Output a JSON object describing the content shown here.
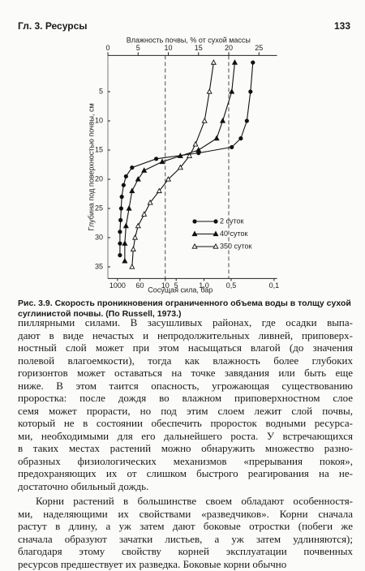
{
  "header": {
    "chapter": "Гл. 3. Ресурсы",
    "page": "133"
  },
  "chart_data": {
    "type": "line",
    "x_label_top": "Влажность почвы, % от сухой массы",
    "x_label_bottom": "Сосущая сила, бар",
    "y_label": "Глубина под поверхностью почвы, см",
    "xlim": [
      0,
      28
    ],
    "xticks": [
      0,
      5,
      10,
      15,
      20,
      25
    ],
    "x2ticks": [
      {
        "value": 1.6,
        "label": "1000"
      },
      {
        "value": 5.3,
        "label": "60"
      },
      {
        "value": 9.5,
        "label": "10"
      },
      {
        "value": 11.3,
        "label": "5"
      },
      {
        "value": 15.9,
        "label": "1,0"
      },
      {
        "value": 20.4,
        "label": "0,5"
      },
      {
        "value": 27.5,
        "label": "0,1"
      }
    ],
    "ylim": [
      -1.2,
      37
    ],
    "y_inverted": true,
    "yticks": [
      5,
      10,
      15,
      20,
      25,
      30,
      35
    ],
    "ref_lines": [
      9.5,
      20
    ],
    "series": [
      {
        "name": "2 суток",
        "color": "#111111",
        "marker": "circle",
        "depths": [
          0,
          5,
          10,
          13,
          14.5,
          15.5,
          16.5,
          18,
          19.5,
          21,
          23,
          25,
          27,
          29,
          31,
          33
        ],
        "values": [
          24,
          23.6,
          23,
          22,
          20.5,
          15,
          8,
          4,
          3,
          2.6,
          2.3,
          2.2,
          2.1,
          2,
          2,
          2
        ]
      },
      {
        "name": "40 суток",
        "color": "#111111",
        "marker": "triangle",
        "depths": [
          0,
          5,
          10,
          13,
          15,
          16,
          17,
          18.5,
          20,
          22,
          25,
          28,
          31,
          34
        ],
        "values": [
          21,
          20.5,
          19,
          18,
          15,
          12,
          9,
          6,
          5,
          4,
          3.5,
          3,
          2.8,
          2.8
        ]
      },
      {
        "name": "350 суток",
        "color": "#111111",
        "marker": "triangle-open",
        "depths": [
          0,
          5,
          10,
          14,
          16,
          18,
          20,
          22,
          24,
          26,
          28,
          30,
          32,
          35
        ],
        "values": [
          17.5,
          16.8,
          16,
          14.5,
          13.5,
          12,
          10,
          8.5,
          7,
          6,
          5,
          4.5,
          4.2,
          4
        ]
      }
    ]
  },
  "caption": {
    "label": "Рис. 3.9.",
    "text": "Скорость проникновения ограниченного объема воды в толщу сухой суглинистой почвы. (По Russell, 1973.)"
  },
  "paragraphs": [
    [
      "пиллярными силами. В засушливых районах, где осадки выпа-",
      "дают в виде нечастых и непродолжительных ливней, приповерх-",
      "ностный слой может при этом насыщаться влагой (до значения",
      "полевой влагоемкости), тогда как влажность более глубоких",
      "горизонтов может оставаться на точке завядания или быть еще",
      "ниже. В этом таится опасность, угрожающая существованию",
      "проростка: после дождя во влажном приповерхностном слое",
      "семя может прорасти, но под этим слоем лежит слой почвы,",
      "который не в состоянии обеспечить проросток водными ресурса-",
      "ми, необходимыми для его дальнейшего роста. У встречающихся",
      "в таких местах растений можно обнаружить множество разно-",
      "образных физиологических механизмов «прерывания покоя»,",
      "предохраняющих их от слишком быстрого реагирования на не-",
      "достаточно обильный дождь."
    ],
    [
      "Корни растений в большинстве своем обладают особенностя-",
      "ми, наделяющими их свойствами «разведчиков». Корни сначала",
      "растут в длину, а уж затем дают боковые отростки (побеги же",
      "сначала образуют зачатки листьев, а уж затем удлиняются);",
      "благодаря этому свойству корней эксплуатации почвенных",
      "ресурсов предшествует их разведка. Боковые корни обычно"
    ]
  ]
}
